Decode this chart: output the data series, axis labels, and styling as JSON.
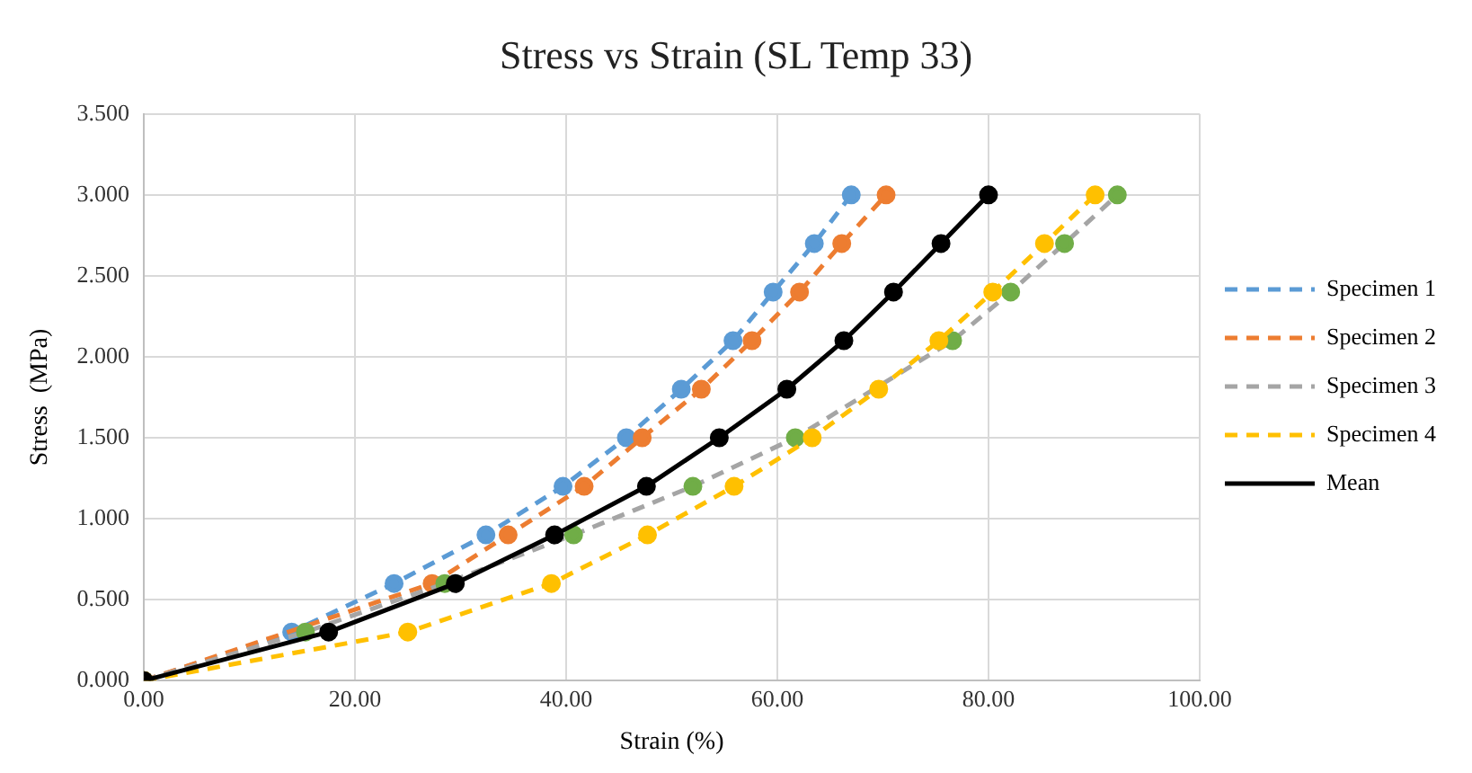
{
  "chart_data": {
    "type": "line",
    "title": "Stress vs Strain (SL Temp 33)",
    "xlabel": "Strain (%)",
    "ylabel": "Stress  (MPa)",
    "xlim": [
      0,
      100
    ],
    "xticks": [
      {
        "value": 0,
        "label": "0.00"
      },
      {
        "value": 20,
        "label": "20.00"
      },
      {
        "value": 40,
        "label": "40.00"
      },
      {
        "value": 60,
        "label": "60.00"
      },
      {
        "value": 80,
        "label": "80.00"
      },
      {
        "value": 100,
        "label": "100.00"
      }
    ],
    "ylim": [
      0,
      3.5
    ],
    "yticks": [
      {
        "value": 0,
        "label": "0.000"
      },
      {
        "value": 0.5,
        "label": "0.500"
      },
      {
        "value": 1,
        "label": "1.000"
      },
      {
        "value": 1.5,
        "label": "1.500"
      },
      {
        "value": 2,
        "label": "2.000"
      },
      {
        "value": 2.5,
        "label": "2.500"
      },
      {
        "value": 3,
        "label": "3.000"
      },
      {
        "value": 3.5,
        "label": "3.500"
      }
    ],
    "grid": true,
    "legend": "right",
    "marker": "circle",
    "series": [
      {
        "name": "Specimen 1",
        "color": "#5b9bd5",
        "line_style": "dashed",
        "x": [
          0,
          14.0,
          23.7,
          32.4,
          39.7,
          45.7,
          50.9,
          55.8,
          59.6,
          63.5,
          67.0
        ],
        "values": [
          0,
          0.3,
          0.6,
          0.9,
          1.2,
          1.5,
          1.8,
          2.1,
          2.4,
          2.7,
          3.0
        ]
      },
      {
        "name": "Specimen 2",
        "color": "#ed7d31",
        "line_style": "dashed",
        "x": [
          0,
          15.9,
          27.3,
          34.5,
          41.7,
          47.2,
          52.8,
          57.6,
          62.1,
          66.1,
          70.3
        ],
        "values": [
          0,
          null,
          0.6,
          0.9,
          1.2,
          1.5,
          1.8,
          2.1,
          2.4,
          2.7,
          3.0
        ]
      },
      {
        "name": "Specimen 3",
        "color": "#a5a5a5",
        "colors": [
          "#70ad47",
          "#70ad47",
          "#70ad47",
          "#70ad47",
          "#70ad47",
          "#70ad47",
          "#70ad47",
          "#70ad47",
          "#70ad47",
          "#70ad47",
          "#70ad47"
        ],
        "line_style": "dashed",
        "x": [
          0,
          15.3,
          28.5,
          40.7,
          52.0,
          61.7,
          70.0,
          76.6,
          82.1,
          87.2,
          92.2
        ],
        "values": [
          0,
          0.3,
          0.6,
          0.9,
          1.2,
          1.5,
          null,
          2.1,
          2.4,
          2.7,
          3.0
        ]
      },
      {
        "name": "Specimen 4",
        "color": "#ffc000",
        "line_style": "dashed",
        "x": [
          0,
          25.0,
          38.6,
          47.7,
          55.9,
          63.3,
          69.6,
          75.3,
          80.4,
          85.3,
          90.1
        ],
        "values": [
          0,
          0.3,
          0.6,
          0.9,
          1.2,
          1.5,
          1.8,
          2.1,
          2.4,
          2.7,
          3.0
        ]
      },
      {
        "name": "Mean",
        "color": "#000000",
        "line_style": "solid",
        "x": [
          0,
          17.5,
          29.5,
          38.9,
          47.6,
          54.5,
          60.9,
          66.3,
          71.0,
          75.5,
          80.0
        ],
        "values": [
          0,
          0.3,
          0.6,
          0.9,
          1.2,
          1.5,
          1.8,
          2.1,
          2.4,
          2.7,
          3.0
        ]
      }
    ]
  }
}
